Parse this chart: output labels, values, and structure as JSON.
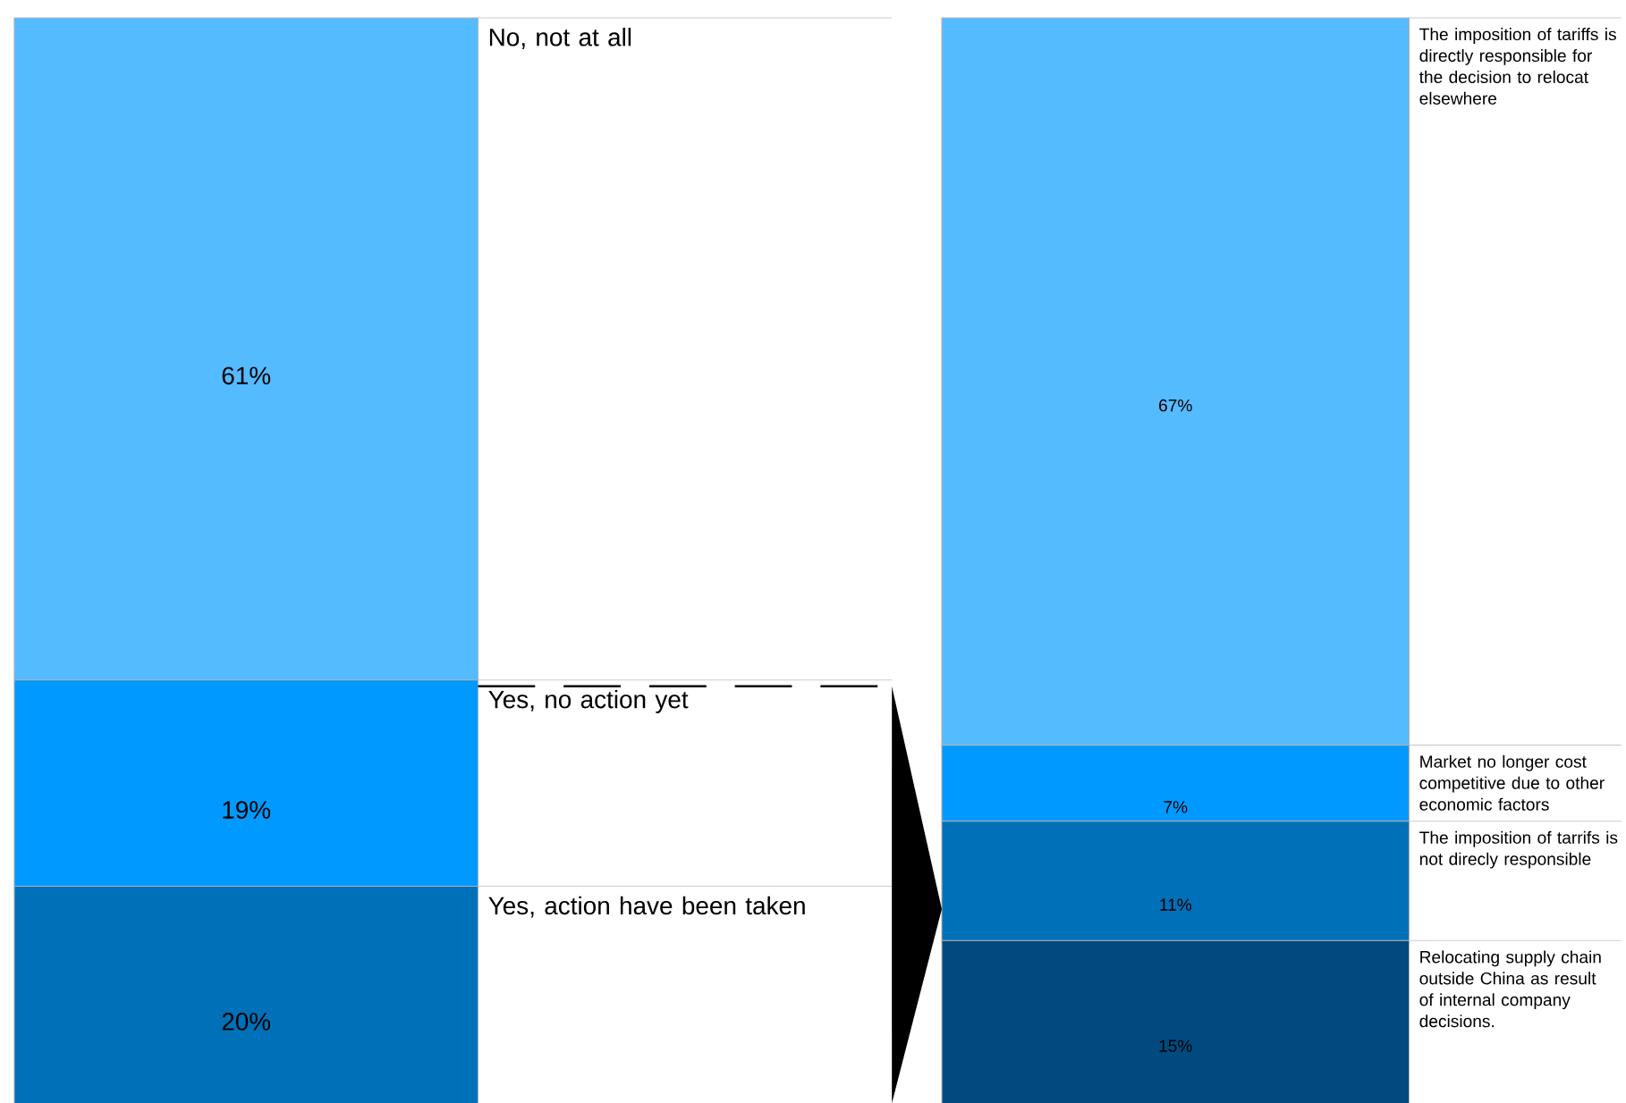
{
  "chart_data": [
    {
      "type": "bar",
      "stacked": true,
      "categories": [
        null
      ],
      "series": [
        {
          "name": "Yes, action have been taken",
          "color": "#0070b8",
          "values": [
            20
          ],
          "value_labels": [
            "20%"
          ]
        },
        {
          "name": "Yes, no action yet",
          "color": "#0099ff",
          "values": [
            19
          ],
          "value_labels": [
            "19%"
          ]
        },
        {
          "name": "No, not at all",
          "color": "#55bbff",
          "values": [
            61
          ],
          "value_labels": [
            "61%"
          ]
        }
      ]
    },
    {
      "type": "bar",
      "stacked": true,
      "categories": [
        null
      ],
      "series": [
        {
          "name": "Relocating supply chain outside China as result of internal company decisions.",
          "color": "#004a80",
          "values": [
            15
          ],
          "value_labels": [
            "15%"
          ]
        },
        {
          "name": "The imposition of tarrifs is not direcly responsible",
          "color": "#0070b8",
          "values": [
            11
          ],
          "value_labels": [
            "11%"
          ]
        },
        {
          "name": "Market no longer cost competitive due to other economic factors",
          "color": "#0099ff",
          "values": [
            7
          ],
          "value_labels": [
            "7%"
          ]
        },
        {
          "name": "The imposition of tariffs is directly responsible for the decision to relocat elsewhere",
          "color": "#55bbff",
          "values": [
            67
          ],
          "value_labels": [
            "67%"
          ]
        }
      ]
    }
  ]
}
